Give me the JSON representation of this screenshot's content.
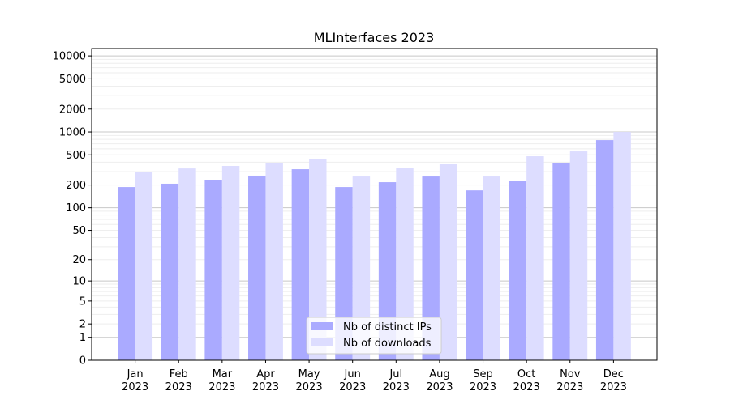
{
  "chart_data": {
    "type": "bar",
    "title": "MLInterfaces 2023",
    "xlabel": "",
    "ylabel": "",
    "y_scale": "log(1+y)",
    "ylim": [
      0,
      12500
    ],
    "grid": true,
    "legend_placement": "lower-center",
    "y_ticks": [
      0,
      1,
      2,
      5,
      10,
      20,
      50,
      100,
      200,
      500,
      1000,
      2000,
      5000,
      10000
    ],
    "y_tick_labels": [
      "0",
      "1",
      "2",
      "5",
      "10",
      "20",
      "50",
      "100",
      "200",
      "500",
      "1000",
      "2000",
      "5000",
      "10000"
    ],
    "categories": [
      {
        "month": "Jan",
        "year": "2023"
      },
      {
        "month": "Feb",
        "year": "2023"
      },
      {
        "month": "Mar",
        "year": "2023"
      },
      {
        "month": "Apr",
        "year": "2023"
      },
      {
        "month": "May",
        "year": "2023"
      },
      {
        "month": "Jun",
        "year": "2023"
      },
      {
        "month": "Jul",
        "year": "2023"
      },
      {
        "month": "Aug",
        "year": "2023"
      },
      {
        "month": "Sep",
        "year": "2023"
      },
      {
        "month": "Oct",
        "year": "2023"
      },
      {
        "month": "Nov",
        "year": "2023"
      },
      {
        "month": "Dec",
        "year": "2023"
      }
    ],
    "series": [
      {
        "name": "Nb of distinct IPs",
        "color": "#aaaaff",
        "values": [
          188,
          208,
          235,
          266,
          323,
          188,
          218,
          259,
          170,
          229,
          394,
          782
        ]
      },
      {
        "name": "Nb of downloads",
        "color": "#ddddff",
        "values": [
          296,
          331,
          357,
          394,
          444,
          259,
          339,
          384,
          259,
          479,
          555,
          1000
        ]
      }
    ]
  }
}
